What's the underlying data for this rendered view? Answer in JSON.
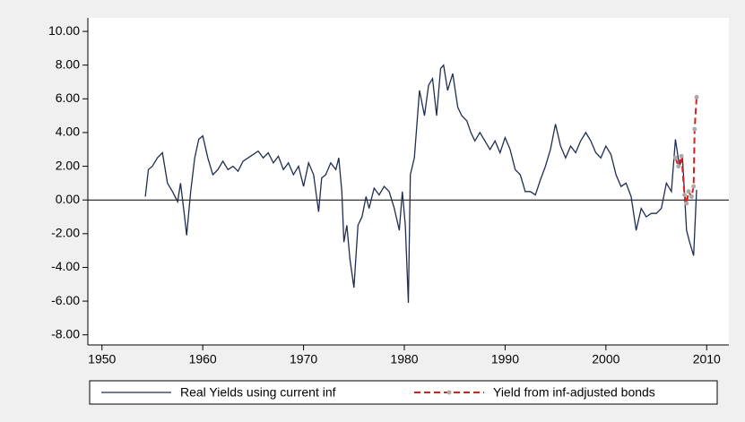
{
  "chart_data": {
    "type": "line",
    "xlim": [
      1948.6,
      2012.2
    ],
    "ylim": [
      -8.6,
      10.8
    ],
    "xticks": [
      1950,
      1960,
      1970,
      1980,
      1990,
      2000,
      2010
    ],
    "yticks": [
      {
        "value": -8,
        "label": "-8.00"
      },
      {
        "value": -6,
        "label": "-6.00"
      },
      {
        "value": -4,
        "label": "-4.00"
      },
      {
        "value": -2,
        "label": "-2.00"
      },
      {
        "value": 0,
        "label": "0.00"
      },
      {
        "value": 2,
        "label": "2.00"
      },
      {
        "value": 4,
        "label": "4.00"
      },
      {
        "value": 6,
        "label": "6.00"
      },
      {
        "value": 8,
        "label": "8.00"
      },
      {
        "value": 10,
        "label": "10.00"
      }
    ],
    "hline": 0,
    "legend": "bottom",
    "series": [
      {
        "name": "Real Yields using current inf",
        "color": "#1f2d4f",
        "dash": false,
        "markers": false,
        "x": [
          1954.3,
          1954.6,
          1955,
          1955.5,
          1956,
          1956.5,
          1957,
          1957.5,
          1957.8,
          1958.2,
          1958.4,
          1958.8,
          1959.2,
          1959.6,
          1960,
          1960.5,
          1961,
          1961.5,
          1962,
          1962.5,
          1963,
          1963.5,
          1964,
          1964.5,
          1965,
          1965.5,
          1966,
          1966.5,
          1967,
          1967.5,
          1968,
          1968.5,
          1969,
          1969.5,
          1970,
          1970.5,
          1971,
          1971.5,
          1971.8,
          1972.2,
          1972.7,
          1973.2,
          1973.5,
          1973.8,
          1974,
          1974.3,
          1974.6,
          1975,
          1975.4,
          1975.8,
          1976.2,
          1976.5,
          1977,
          1977.5,
          1978,
          1978.5,
          1979,
          1979.5,
          1979.8,
          1980.1,
          1980.4,
          1980.6,
          1981,
          1981.5,
          1982,
          1982.4,
          1982.8,
          1983.2,
          1983.6,
          1983.9,
          1984.3,
          1984.8,
          1985.3,
          1985.7,
          1986.2,
          1986.6,
          1987,
          1987.5,
          1988,
          1988.5,
          1989,
          1989.5,
          1990,
          1990.5,
          1991,
          1991.5,
          1992,
          1992.5,
          1993,
          1993.5,
          1994,
          1994.5,
          1995,
          1995.5,
          1996,
          1996.5,
          1997,
          1997.5,
          1998,
          1998.5,
          1999,
          1999.5,
          2000,
          2000.5,
          2001,
          2001.5,
          2002,
          2002.5,
          2003,
          2003.5,
          2004,
          2004.5,
          2005,
          2005.5,
          2006,
          2006.5,
          2006.9,
          2007.3,
          2007.6,
          2008,
          2008.3,
          2008.7,
          2009
        ],
        "values": [
          0.2,
          1.8,
          2.0,
          2.5,
          2.8,
          1.0,
          0.5,
          -0.1,
          1.0,
          -1.0,
          -2.1,
          0.5,
          2.5,
          3.6,
          3.8,
          2.5,
          1.5,
          1.8,
          2.3,
          1.8,
          2.0,
          1.7,
          2.3,
          2.5,
          2.7,
          2.9,
          2.5,
          2.8,
          2.2,
          2.6,
          1.8,
          2.2,
          1.5,
          2.0,
          0.8,
          2.2,
          1.5,
          -0.7,
          1.3,
          1.5,
          2.2,
          1.8,
          2.5,
          0.5,
          -2.5,
          -1.5,
          -3.5,
          -5.2,
          -1.5,
          -1.0,
          0.2,
          -0.5,
          0.7,
          0.3,
          0.8,
          0.5,
          -0.5,
          -1.8,
          0.5,
          -1.5,
          -6.1,
          1.5,
          2.5,
          6.5,
          5.0,
          6.8,
          7.2,
          5.0,
          7.8,
          8.0,
          6.5,
          7.5,
          5.5,
          5.0,
          4.7,
          4.0,
          3.5,
          4.0,
          3.5,
          3.0,
          3.5,
          2.8,
          3.7,
          3.0,
          1.8,
          1.5,
          0.5,
          0.5,
          0.3,
          1.2,
          2.0,
          3.0,
          4.5,
          3.2,
          2.5,
          3.2,
          2.8,
          3.5,
          4.0,
          3.5,
          2.8,
          2.5,
          3.2,
          2.7,
          1.5,
          0.8,
          1.0,
          0.2,
          -1.8,
          -0.5,
          -1.0,
          -0.8,
          -0.8,
          -0.5,
          1.0,
          0.5,
          3.6,
          2.0,
          2.5,
          -1.8,
          -2.5,
          -3.3,
          0.6
        ]
      },
      {
        "name": "Yield from inf-adjusted bonds",
        "color": "#d62020",
        "dash": true,
        "markers": true,
        "x": [
          2006.9,
          2007.2,
          2007.5,
          2007.8,
          2008,
          2008.2,
          2008.5,
          2008.7,
          2008.8,
          2009
        ],
        "values": [
          2.5,
          2.0,
          2.6,
          0.3,
          -0.2,
          0.5,
          0.2,
          0.8,
          4.2,
          6.1
        ]
      }
    ]
  }
}
